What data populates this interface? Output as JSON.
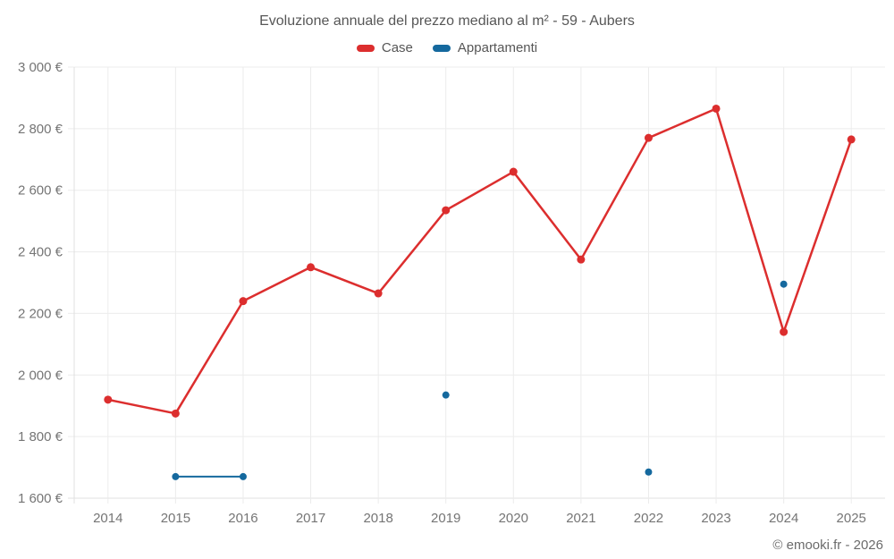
{
  "header": {
    "title": "Evoluzione annuale del prezzo mediano al m² - 59 - Aubers"
  },
  "legend": {
    "items": [
      {
        "label": "Case",
        "color": "#dc2e2e"
      },
      {
        "label": "Appartamenti",
        "color": "#15699e"
      }
    ]
  },
  "footer": {
    "credit": "© emooki.fr - 2026"
  },
  "colors": {
    "case_red": "#dc2e2e",
    "appartamenti_blue": "#15699e",
    "gridline": "#ececec",
    "axis_line": "#e0e0e0",
    "tick_text": "#757575"
  },
  "chart_data": {
    "type": "line",
    "title": "Evoluzione annuale del prezzo mediano al m² - 59 - Aubers",
    "categories": [
      "2014",
      "2015",
      "2016",
      "2017",
      "2018",
      "2019",
      "2020",
      "2021",
      "2022",
      "2023",
      "2024",
      "2025"
    ],
    "series": [
      {
        "name": "Case",
        "color": "#dc2e2e",
        "values": [
          1920,
          1875,
          2240,
          2350,
          2265,
          2535,
          2660,
          2375,
          2770,
          2865,
          2140,
          2765
        ]
      },
      {
        "name": "Appartamenti",
        "color": "#15699e",
        "values": [
          null,
          1670,
          1670,
          null,
          null,
          1935,
          null,
          null,
          1685,
          null,
          2295,
          null
        ]
      }
    ],
    "xlabel": "",
    "ylabel": "",
    "ylim": [
      1600,
      3000
    ],
    "yticks": [
      1600,
      1800,
      2000,
      2200,
      2400,
      2600,
      2800,
      3000
    ],
    "ytick_labels": [
      "1 600 €",
      "1 800 €",
      "2 000 €",
      "2 200 €",
      "2 400 €",
      "2 600 €",
      "2 800 €",
      "3 000 €"
    ],
    "grid": true,
    "legend_position": "top",
    "annotations": [
      "© emooki.fr - 2026"
    ]
  }
}
